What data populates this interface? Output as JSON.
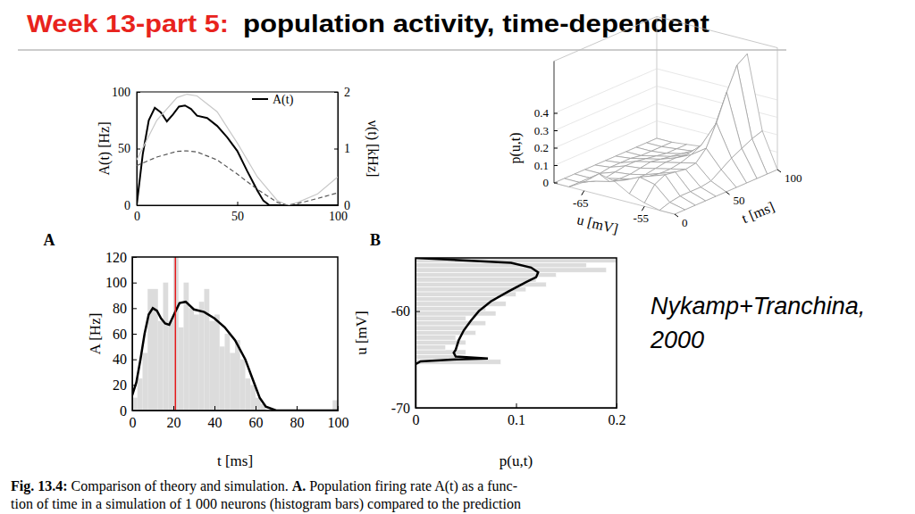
{
  "slide": {
    "title_prefix": "Week 13-part 5:",
    "title": "population activity, time-dependent",
    "citation": [
      "Nykamp+Tranchina,",
      "2000"
    ],
    "caption": [
      [
        "Fig. 13.4:",
        " Comparison of theory and simulation. ",
        "A.",
        " Population firing rate A(t) as a func-"
      ],
      [
        "tion of time in a simulation of 1 000 neurons (histogram bars) compared to the prediction"
      ]
    ]
  },
  "chart_data": [
    {
      "type": "line",
      "y_label": "A(t) [Hz]",
      "y2_label": "ν(t) [kHz]",
      "xlim": [
        0,
        100
      ],
      "xticks": [
        0,
        50,
        100
      ],
      "ylim": [
        0,
        100
      ],
      "yticks": [
        0,
        50,
        100
      ],
      "y2lim": [
        0,
        2
      ],
      "y2ticks": [
        0,
        1,
        2
      ],
      "legend": "upper right",
      "series": [
        {
          "name": "A(t)",
          "color": "#000000",
          "line_style": "solid",
          "x": [
            0,
            3,
            6,
            9,
            12,
            15,
            18,
            21,
            24,
            27,
            30,
            35,
            40,
            45,
            50,
            55,
            60,
            63,
            66,
            70,
            80,
            90,
            100
          ],
          "values": [
            0,
            45,
            75,
            86,
            82,
            74,
            80,
            87,
            88,
            85,
            79,
            77,
            70,
            60,
            48,
            30,
            13,
            4,
            0,
            0,
            0,
            0,
            0
          ]
        },
        {
          "color": "#c8c8c8",
          "line_style": "solid",
          "axis": "y2",
          "x": [
            0,
            10,
            20,
            25,
            30,
            40,
            50,
            60,
            70,
            75,
            80,
            90,
            100
          ],
          "values": [
            0.8,
            1.5,
            1.9,
            1.96,
            1.93,
            1.65,
            1.1,
            0.5,
            0.08,
            0.0,
            0.05,
            0.2,
            0.5
          ]
        },
        {
          "color": "#555555",
          "line_style": "dashed",
          "axis": "y2",
          "x": [
            0,
            10,
            20,
            25,
            30,
            40,
            50,
            60,
            70,
            75,
            80,
            90,
            100
          ],
          "values": [
            0.7,
            0.85,
            0.95,
            0.96,
            0.94,
            0.8,
            0.55,
            0.28,
            0.05,
            0.0,
            0.03,
            0.12,
            0.22
          ]
        }
      ]
    },
    {
      "type": "surface",
      "z_label": "p(u,t)",
      "x_label": "u [mV]",
      "y_label": "t [ms]",
      "x": [
        -70,
        -67.5,
        -65,
        -62.5,
        -60,
        -57.5,
        -55,
        -52.5,
        -50
      ],
      "y": [
        0,
        10,
        20,
        30,
        40,
        50,
        60,
        70,
        80,
        90,
        100
      ],
      "z": [
        [
          0,
          0,
          0.05,
          0.12,
          0.1,
          0.05,
          0.02,
          0,
          0
        ],
        [
          0,
          0,
          0.03,
          0.05,
          0.08,
          0.12,
          0.1,
          0.02,
          0
        ],
        [
          0,
          0,
          0.02,
          0.04,
          0.06,
          0.1,
          0.13,
          0.03,
          0
        ],
        [
          0,
          0,
          0.03,
          0.04,
          0.06,
          0.09,
          0.12,
          0.03,
          0
        ],
        [
          0,
          0.01,
          0.04,
          0.05,
          0.07,
          0.09,
          0.11,
          0.03,
          0
        ],
        [
          0,
          0.01,
          0.04,
          0.06,
          0.08,
          0.1,
          0.12,
          0.04,
          0
        ],
        [
          0,
          0.01,
          0.03,
          0.05,
          0.08,
          0.12,
          0.18,
          0.08,
          0
        ],
        [
          0,
          0,
          0.02,
          0.04,
          0.07,
          0.15,
          0.3,
          0.12,
          0
        ],
        [
          0,
          0,
          0.01,
          0.03,
          0.06,
          0.18,
          0.45,
          0.15,
          0
        ],
        [
          0,
          0,
          0.01,
          0.02,
          0.05,
          0.2,
          0.58,
          0.18,
          0
        ],
        [
          0,
          0,
          0.01,
          0.02,
          0.04,
          0.2,
          0.62,
          0.2,
          0
        ]
      ],
      "xlim": [
        -70,
        -50
      ],
      "xticks": [
        -65,
        -55
      ],
      "ylim": [
        0,
        100
      ],
      "yticks": [
        0,
        50,
        100
      ],
      "zlim": [
        0,
        0.7
      ],
      "zticks": [
        0,
        0.1,
        0.2,
        0.3,
        0.4
      ]
    },
    {
      "type": "histogram",
      "title": "A",
      "x_label": "t [ms]",
      "y_label": "A [Hz]",
      "bins": [
        0,
        2.5,
        5,
        7.5,
        10,
        12.5,
        15,
        17.5,
        20,
        22.5,
        25,
        27.5,
        30,
        32.5,
        35,
        37.5,
        40,
        42.5,
        45,
        47.5,
        50,
        52.5,
        55,
        57.5,
        60,
        62.5,
        65,
        67.5,
        70,
        72.5,
        75,
        77.5,
        80,
        82.5,
        85,
        87.5,
        90,
        92.5,
        95,
        97.5,
        100
      ],
      "values": [
        10,
        25,
        45,
        95,
        95,
        70,
        100,
        70,
        120,
        65,
        100,
        80,
        75,
        85,
        95,
        70,
        75,
        50,
        60,
        45,
        55,
        40,
        25,
        20,
        10,
        5,
        0,
        0,
        0,
        0,
        0,
        0,
        0,
        0,
        0,
        0,
        0,
        0,
        0,
        8
      ],
      "color": "#dcdcdc",
      "xlim": [
        0,
        100
      ],
      "xticks": [
        0,
        20,
        40,
        60,
        80,
        100
      ],
      "ylim": [
        0,
        120
      ],
      "yticks": [
        0,
        20,
        40,
        60,
        80,
        100,
        120
      ],
      "series": [
        {
          "type": "line",
          "color": "#000000",
          "x": [
            0,
            2,
            4,
            6,
            8,
            10,
            12,
            14,
            16,
            18,
            20,
            23,
            26,
            30,
            35,
            40,
            45,
            50,
            55,
            58,
            62,
            65,
            70,
            80,
            90,
            100
          ],
          "values": [
            12,
            22,
            40,
            60,
            75,
            80,
            78,
            72,
            68,
            67,
            74,
            84,
            85,
            79,
            77,
            72,
            65,
            55,
            40,
            27,
            10,
            3,
            0,
            0,
            0,
            0
          ]
        }
      ],
      "annotations": [
        {
          "type": "vline",
          "x": 21,
          "color": "#e41a1c"
        }
      ]
    },
    {
      "type": "histogram",
      "orientation": "horizontal",
      "title": "B",
      "x_label": "p(u,t)",
      "y_label": "u [mV]",
      "bins": [
        -65.5,
        -65,
        -64.5,
        -64,
        -63.5,
        -63,
        -62.5,
        -62,
        -61.5,
        -61,
        -60.5,
        -60,
        -59.5,
        -59,
        -58.5,
        -58,
        -57.5,
        -57,
        -56.5,
        -56,
        -55.5,
        -55,
        -54.5
      ],
      "values": [
        0.085,
        0.04,
        0.05,
        0.03,
        0.05,
        0.04,
        0.06,
        0.05,
        0.07,
        0.05,
        0.08,
        0.07,
        0.09,
        0.08,
        0.1,
        0.11,
        0.13,
        0.12,
        0.14,
        0.19,
        0.17,
        0.2
      ],
      "color": "#dcdcdc",
      "xlim": [
        0,
        0.2
      ],
      "xticks": [
        0,
        0.1,
        0.2
      ],
      "ylim": [
        -70,
        -54.5
      ],
      "yticks": [
        -70,
        -60
      ],
      "series": [
        {
          "type": "line",
          "color": "#000000",
          "x": [
            -70,
            -65.5,
            -65.2,
            -65,
            -64.9,
            -64.7,
            -64.3,
            -64,
            -63,
            -62,
            -61,
            -60,
            -59,
            -58,
            -57,
            -56.5,
            -56,
            -55.5,
            -55,
            -54.5
          ],
          "values": [
            0,
            0,
            0.005,
            0.04,
            0.072,
            0.04,
            0.038,
            0.04,
            0.043,
            0.048,
            0.055,
            0.063,
            0.075,
            0.092,
            0.11,
            0.12,
            0.122,
            0.115,
            0.095,
            0
          ]
        }
      ]
    }
  ]
}
